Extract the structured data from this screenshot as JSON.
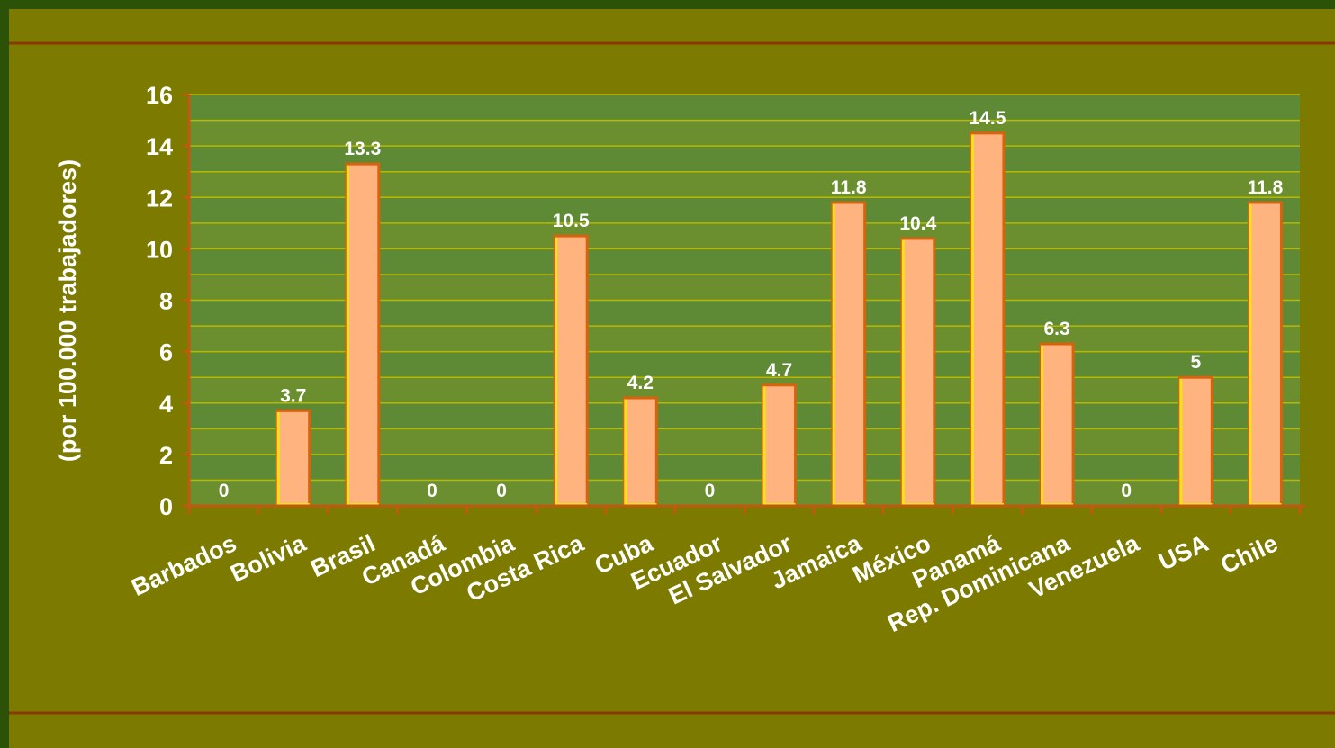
{
  "colors": {
    "outer_background": "#2c5208",
    "panel_background": "#7c7b00",
    "divider": "#8a3a00",
    "plot_band_dark": "#5e8a36",
    "plot_band_light": "#6b8f2e",
    "gridline": "#b9b800",
    "axis": "#c05a10",
    "bar_fill": "#ffb37f",
    "bar_edge_left": "#f2e21c",
    "bar_edge_right": "#d8620e",
    "label": "#ffffff"
  },
  "chart_data": {
    "type": "bar",
    "title": "",
    "xlabel": "",
    "ylabel": "(por 100.000 trabajadores)",
    "ylim": [
      0,
      16
    ],
    "yticks": [
      "0",
      "2",
      "4",
      "6",
      "8",
      "10",
      "12",
      "14",
      "16"
    ],
    "grid": true,
    "categories": [
      "Barbados",
      "Bolivia",
      "Brasil",
      "Canadá",
      "Colombia",
      "Costa Rica",
      "Cuba",
      "Ecuador",
      "El Salvador",
      "Jamaica",
      "México",
      "Panamá",
      "Rep. Dominicana",
      "Venezuela",
      "USA",
      "Chile"
    ],
    "values": [
      0,
      3.7,
      13.3,
      0,
      0,
      10.5,
      4.2,
      0,
      4.7,
      11.8,
      10.4,
      14.5,
      6.3,
      0,
      5,
      11.8
    ],
    "value_labels": [
      "0",
      "3.7",
      "13.3",
      "0",
      "0",
      "10.5",
      "4.2",
      "0",
      "4.7",
      "11.8",
      "10.4",
      "14.5",
      "6.3",
      "0",
      "5",
      "11.8"
    ]
  }
}
